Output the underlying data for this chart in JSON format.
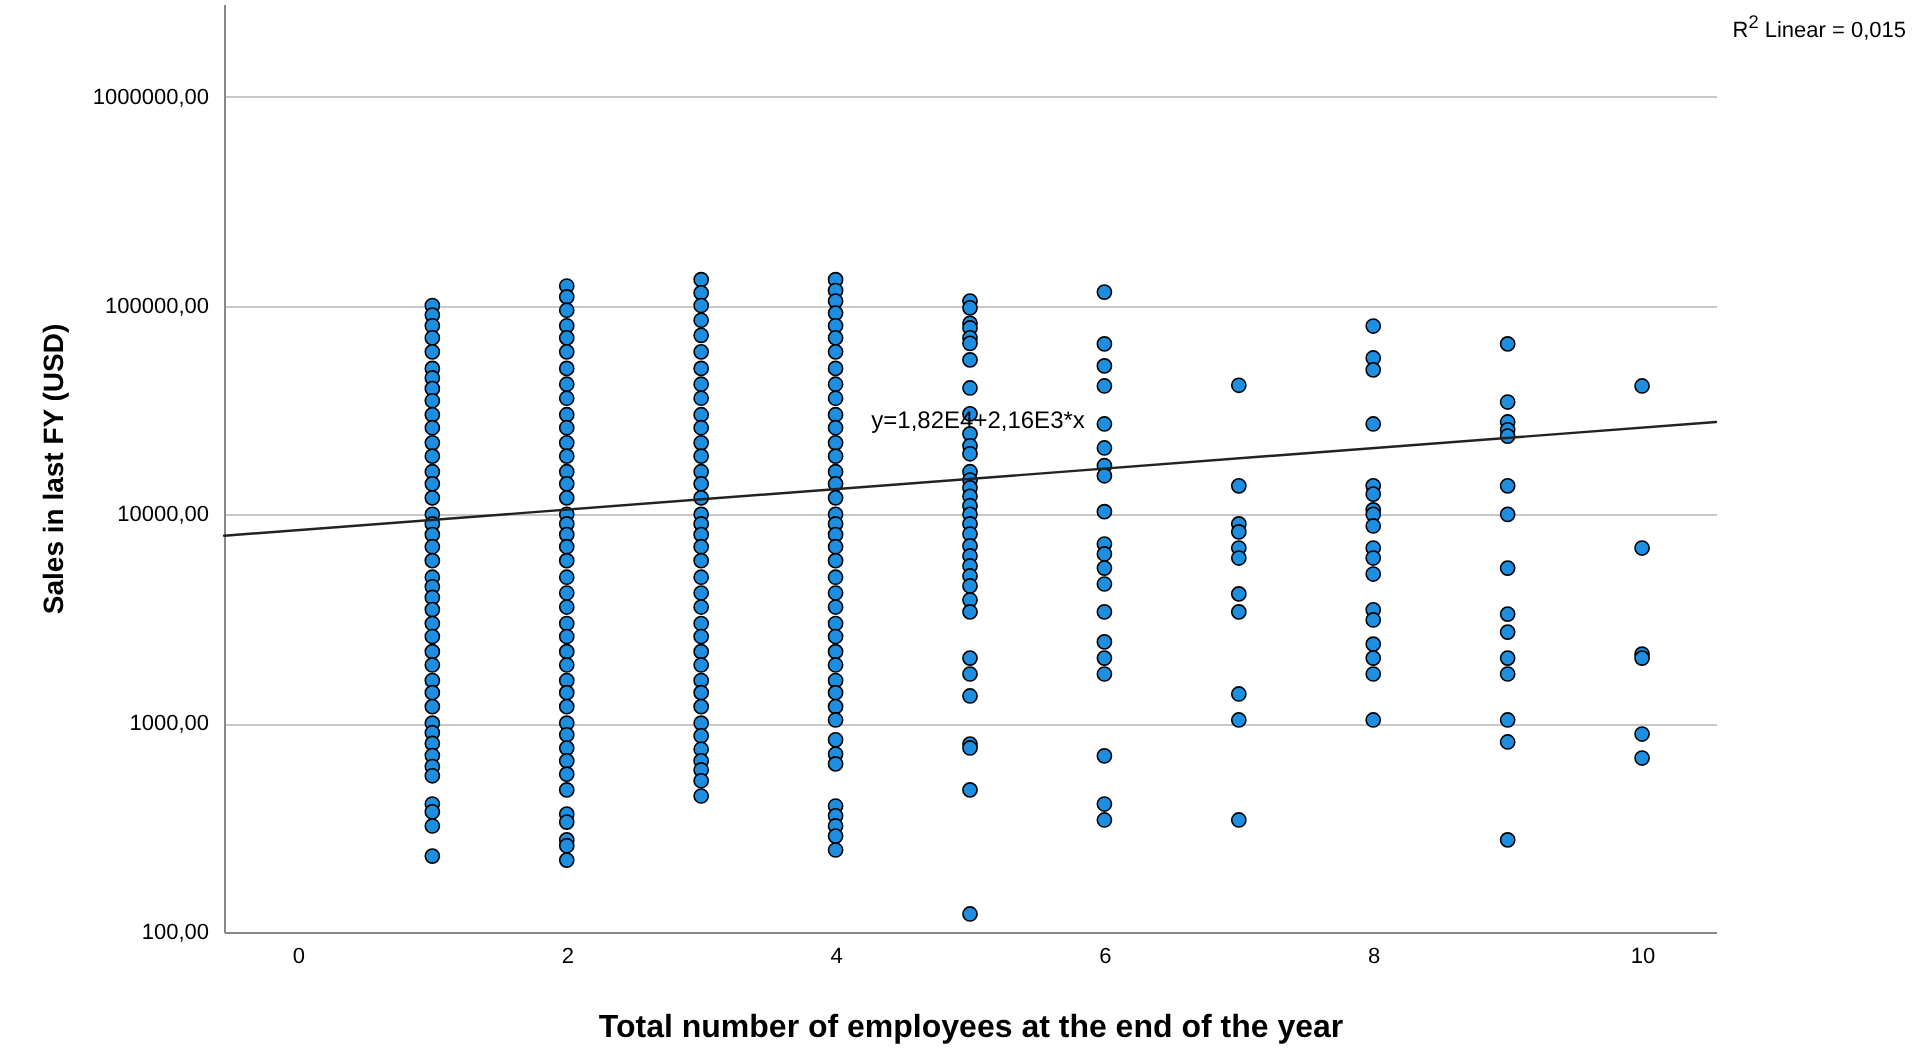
{
  "chart_data": {
    "type": "scatter",
    "xlabel": "Total number of employees at the end of the year",
    "ylabel": "Sales in last FY (USD)",
    "xlim": [
      -0.55,
      10.55
    ],
    "ylim": [
      100,
      2780000
    ],
    "xticks": [
      0,
      2,
      4,
      6,
      8,
      10
    ],
    "yticks": [
      {
        "value": 100,
        "label": "100,00"
      },
      {
        "value": 1000,
        "label": "1000,00"
      },
      {
        "value": 10000,
        "label": "10000,00"
      },
      {
        "value": 100000,
        "label": "100000,00"
      },
      {
        "value": 1000000,
        "label": "1000000,00"
      }
    ],
    "grid": "y",
    "marker": "circle",
    "log": true,
    "annotations": [
      "R$^{2}$ Linear = 0,015",
      {
        "text": "y=1,82E4+2,16E3*x",
        "x": 5.06,
        "y": 28300
      }
    ],
    "series": [
      {
        "type": "scatter",
        "color": "#1e8ee0",
        "x": [
          1,
          1,
          1,
          1,
          1,
          1,
          1,
          1,
          1,
          1,
          1,
          1,
          1,
          1,
          1,
          1,
          1,
          1,
          1,
          1,
          1,
          1,
          1,
          1,
          1,
          1,
          1,
          1,
          1,
          1,
          1,
          1,
          1,
          1,
          1,
          1,
          1,
          1,
          1,
          1,
          1,
          1,
          2,
          2,
          2,
          2,
          2,
          2,
          2,
          2,
          2,
          2,
          2,
          2,
          2,
          2,
          2,
          2,
          2,
          2,
          2,
          2,
          2,
          2,
          2,
          2,
          2,
          2,
          2,
          2,
          2,
          2,
          2,
          2,
          2,
          2,
          2,
          2,
          2,
          2,
          2,
          2,
          2,
          2,
          3,
          3,
          3,
          3,
          3,
          3,
          3,
          3,
          3,
          3,
          3,
          3,
          3,
          3,
          3,
          3,
          3,
          3,
          3,
          3,
          3,
          3,
          3,
          3,
          3,
          3,
          3,
          3,
          3,
          3,
          3,
          3,
          3,
          3,
          3,
          3,
          3,
          3,
          4,
          4,
          4,
          4,
          4,
          4,
          4,
          4,
          4,
          4,
          4,
          4,
          4,
          4,
          4,
          4,
          4,
          4,
          4,
          4,
          4,
          4,
          4,
          4,
          4,
          4,
          4,
          4,
          4,
          4,
          4,
          4,
          4,
          4,
          4,
          4,
          4,
          4,
          4,
          4,
          4,
          5,
          5,
          5,
          5,
          5,
          5,
          5,
          5,
          5,
          5,
          5,
          5,
          5,
          5,
          5,
          5,
          5,
          5,
          5,
          5,
          5,
          5,
          5,
          5,
          5,
          5,
          5,
          5,
          5,
          5,
          5,
          5,
          5,
          5,
          6,
          6,
          6,
          6,
          6,
          6,
          6,
          6,
          6,
          6,
          6,
          6,
          6,
          6,
          6,
          6,
          6,
          6,
          6,
          6,
          7,
          7,
          7,
          7,
          7,
          7,
          7,
          7,
          7,
          7,
          7,
          8,
          8,
          8,
          8,
          8,
          8,
          8,
          8,
          8,
          8,
          8,
          8,
          8,
          8,
          8,
          8,
          8,
          8,
          9,
          9,
          9,
          9,
          9,
          9,
          9,
          9,
          9,
          9,
          9,
          9,
          9,
          9,
          9,
          10,
          10,
          10,
          10,
          10,
          10
        ],
        "values": [
          100000,
          90000,
          80000,
          70000,
          60000,
          50000,
          45000,
          40000,
          35000,
          30000,
          26000,
          22000,
          19000,
          16000,
          14000,
          12000,
          10000,
          9000,
          8000,
          7000,
          6000,
          5000,
          4500,
          4000,
          3500,
          3000,
          2600,
          2200,
          1900,
          1600,
          1400,
          1200,
          1000,
          900,
          800,
          700,
          620,
          560,
          410,
          376,
          322,
          231,
          124000,
          110000,
          95000,
          80000,
          70000,
          60000,
          50000,
          42000,
          36000,
          30000,
          26000,
          22000,
          19000,
          16000,
          14000,
          12000,
          10000,
          9000,
          8000,
          7000,
          6000,
          5000,
          4200,
          3600,
          3000,
          2600,
          2200,
          1900,
          1600,
          1400,
          1200,
          1000,
          880,
          760,
          660,
          570,
          479,
          367,
          336,
          276,
          259,
          221,
          133000,
          115000,
          100000,
          85000,
          72000,
          60000,
          50000,
          42000,
          36000,
          30000,
          26000,
          22000,
          19000,
          16000,
          14000,
          12000,
          10000,
          9000,
          8000,
          7000,
          6000,
          5000,
          4200,
          3600,
          3000,
          2600,
          2200,
          1900,
          1600,
          1400,
          1200,
          1000,
          870,
          750,
          660,
          597,
          530,
          448,
          133000,
          118000,
          105000,
          92000,
          80000,
          70000,
          60000,
          50000,
          42000,
          36000,
          30000,
          26000,
          22000,
          19000,
          16000,
          14000,
          12000,
          10000,
          9000,
          8000,
          7000,
          6000,
          5000,
          4200,
          3600,
          3000,
          2600,
          2200,
          1900,
          1600,
          1400,
          1200,
          1036,
          832,
          711,
          638,
          401,
          360,
          322,
          288,
          247,
          105000,
          97500,
          82200,
          78100,
          70000,
          65900,
          54900,
          40300,
          30300,
          24300,
          21300,
          19500,
          16000,
          14600,
          13400,
          12200,
          11000,
          10000,
          9000,
          8050,
          7060,
          6320,
          5660,
          5070,
          4540,
          3890,
          3410,
          2050,
          1720,
          1350,
          794,
          761,
          479,
          122,
          116000,
          65500,
          51400,
          41200,
          27100,
          20800,
          17100,
          15300,
          10300,
          7210,
          6460,
          5530,
          4640,
          3410,
          2450,
          2050,
          1720,
          697,
          410,
          344,
          41500,
          13700,
          9000,
          8240,
          6900,
          6180,
          4160,
          3410,
          1380,
          1036,
          344,
          79800,
          56100,
          49200,
          27100,
          13700,
          12500,
          10500,
          10000,
          8800,
          6900,
          6180,
          5180,
          3490,
          3120,
          2390,
          2050,
          1720,
          1036,
          65500,
          34500,
          27700,
          25400,
          23700,
          13700,
          10000,
          5530,
          3330,
          2730,
          2050,
          1720,
          1036,
          813,
          276,
          41200,
          6900,
          2140,
          2050,
          887,
          681
        ]
      },
      {
        "type": "line",
        "marker": "none",
        "color": "#222222",
        "x": [
          -0.55,
          10.55
        ],
        "values": [
          7900,
          27700
        ]
      }
    ]
  }
}
